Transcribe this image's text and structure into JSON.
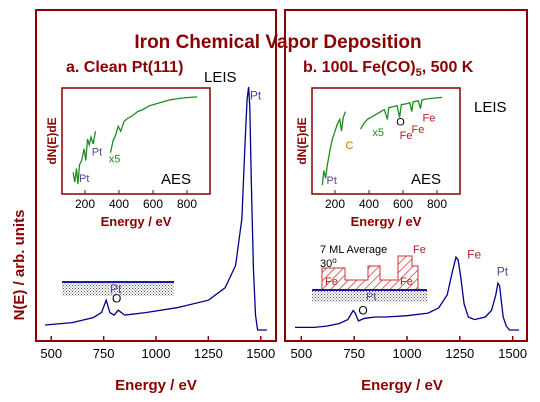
{
  "figure": {
    "title": "Iron Chemical Vapor Deposition",
    "ylabel": "N(E) / arb. units"
  },
  "colors": {
    "frame": "#8b0000",
    "leis_trace": "#00008b",
    "aes_trace": "#228b22",
    "label_pt": "#5a3fa0",
    "label_fe": "#b22222",
    "label_c": "#c87800",
    "label_o": "#000000",
    "model_hatch": "#c83232"
  },
  "chart_data": [
    {
      "type": "line",
      "panel": "a",
      "title": "a. Clean Pt(111)",
      "method_label": "LEIS",
      "xlabel": "Energy / eV",
      "ylabel": "N(E) / arb. units",
      "xlim": [
        470,
        1530
      ],
      "ylim": [
        0,
        1
      ],
      "xticks": [
        500,
        750,
        1000,
        1250,
        1500
      ],
      "grid": false,
      "series": [
        {
          "values": [
            [
              470,
              0.02
            ],
            [
              600,
              0.03
            ],
            [
              700,
              0.05
            ],
            [
              740,
              0.07
            ],
            [
              762,
              0.12
            ],
            [
              780,
              0.07
            ],
            [
              800,
              0.06
            ],
            [
              820,
              0.08
            ],
            [
              850,
              0.06
            ],
            [
              950,
              0.07
            ],
            [
              1100,
              0.09
            ],
            [
              1250,
              0.12
            ],
            [
              1330,
              0.17
            ],
            [
              1380,
              0.26
            ],
            [
              1410,
              0.45
            ],
            [
              1425,
              0.75
            ],
            [
              1435,
              0.93
            ],
            [
              1442,
              0.98
            ],
            [
              1448,
              0.9
            ],
            [
              1455,
              0.6
            ],
            [
              1465,
              0.25
            ],
            [
              1475,
              0.06
            ],
            [
              1485,
              0.0
            ],
            [
              1530,
              0.0
            ]
          ]
        }
      ],
      "peak_labels": [
        {
          "text": "Pt",
          "x": 1448,
          "y": 0.93
        },
        {
          "text": "O",
          "x": 790,
          "y": 0.11
        }
      ],
      "model_labels": [
        "Pt"
      ],
      "inset": {
        "method_label": "AES",
        "xlabel": "Energy / eV",
        "ylabel": "dN(E)dE",
        "xlim": [
          100,
          900
        ],
        "xticks": [
          200,
          400,
          600,
          800
        ],
        "segments": [
          [
            [
              130,
              0.18
            ],
            [
              140,
              0.08
            ],
            [
              150,
              0.22
            ],
            [
              158,
              0.06
            ],
            [
              168,
              0.26
            ],
            [
              180,
              0.3
            ],
            [
              195,
              0.42
            ],
            [
              205,
              0.3
            ],
            [
              215,
              0.52
            ],
            [
              225,
              0.46
            ],
            [
              235,
              0.54
            ],
            [
              248,
              0.47
            ],
            [
              262,
              0.6
            ]
          ],
          [
            [
              350,
              0.38
            ],
            [
              365,
              0.5
            ],
            [
              380,
              0.56
            ],
            [
              395,
              0.65
            ],
            [
              410,
              0.6
            ],
            [
              430,
              0.7
            ],
            [
              450,
              0.73
            ],
            [
              480,
              0.76
            ],
            [
              510,
              0.8
            ],
            [
              540,
              0.82
            ],
            [
              580,
              0.86
            ],
            [
              620,
              0.88
            ],
            [
              660,
              0.9
            ],
            [
              700,
              0.92
            ],
            [
              740,
              0.93
            ],
            [
              780,
              0.94
            ],
            [
              820,
              0.945
            ],
            [
              860,
              0.95
            ]
          ]
        ],
        "peak_labels": [
          {
            "text": "Pt",
            "x": 165,
            "y": 0.08
          },
          {
            "text": "Pt",
            "x": 240,
            "y": 0.35
          },
          {
            "text": "x5",
            "x": 340,
            "y": 0.28
          }
        ]
      }
    },
    {
      "type": "line",
      "panel": "b",
      "title": "b. 100L Fe(CO)",
      "title_sub": "5",
      "title_suffix": ", 500 K",
      "method_label": "LEIS",
      "xlabel": "Energy / eV",
      "xlim": [
        470,
        1530
      ],
      "ylim": [
        0,
        1
      ],
      "xticks": [
        500,
        750,
        1000,
        1250,
        1500
      ],
      "grid": false,
      "series": [
        {
          "values": [
            [
              470,
              0.02
            ],
            [
              560,
              0.02
            ],
            [
              620,
              0.03
            ],
            [
              680,
              0.05
            ],
            [
              720,
              0.08
            ],
            [
              745,
              0.15
            ],
            [
              755,
              0.13
            ],
            [
              770,
              0.07
            ],
            [
              800,
              0.09
            ],
            [
              850,
              0.1
            ],
            [
              900,
              0.1
            ],
            [
              1000,
              0.11
            ],
            [
              1100,
              0.13
            ],
            [
              1150,
              0.17
            ],
            [
              1190,
              0.27
            ],
            [
              1215,
              0.45
            ],
            [
              1232,
              0.56
            ],
            [
              1242,
              0.54
            ],
            [
              1255,
              0.4
            ],
            [
              1270,
              0.2
            ],
            [
              1290,
              0.1
            ],
            [
              1320,
              0.08
            ],
            [
              1370,
              0.1
            ],
            [
              1400,
              0.15
            ],
            [
              1420,
              0.27
            ],
            [
              1430,
              0.36
            ],
            [
              1438,
              0.34
            ],
            [
              1446,
              0.23
            ],
            [
              1455,
              0.1
            ],
            [
              1470,
              0.03
            ],
            [
              1485,
              0.0
            ],
            [
              1530,
              0.0
            ]
          ]
        }
      ],
      "peak_labels": [
        {
          "text": "Fe",
          "x": 1285,
          "y": 0.55
        },
        {
          "text": "Pt",
          "x": 1425,
          "y": 0.42
        },
        {
          "text": "O",
          "x": 770,
          "y": 0.12
        }
      ],
      "model_title": "7 ML Average",
      "model_angle": "30",
      "model_angle_unit": "o",
      "model_labels": [
        "Fe",
        "Pt",
        "Fe",
        "Fe"
      ],
      "inset": {
        "method_label": "AES",
        "xlabel": "Energy / eV",
        "ylabel": "dN(E)dE",
        "xlim": [
          100,
          900
        ],
        "xticks": [
          200,
          400,
          600,
          800
        ],
        "segments": [
          [
            [
              125,
              0.05
            ],
            [
              135,
              0.2
            ],
            [
              145,
              0.12
            ],
            [
              155,
              0.26
            ],
            [
              170,
              0.4
            ],
            [
              185,
              0.52
            ],
            [
              200,
              0.6
            ],
            [
              215,
              0.68
            ],
            [
              228,
              0.72
            ],
            [
              238,
              0.6
            ],
            [
              248,
              0.74
            ],
            [
              262,
              0.8
            ]
          ],
          [
            [
              350,
              0.62
            ],
            [
              370,
              0.68
            ],
            [
              390,
              0.72
            ],
            [
              410,
              0.74
            ],
            [
              430,
              0.76
            ],
            [
              450,
              0.78
            ],
            [
              470,
              0.8
            ],
            [
              490,
              0.82
            ],
            [
              508,
              0.72
            ],
            [
              516,
              0.84
            ],
            [
              540,
              0.85
            ],
            [
              565,
              0.86
            ],
            [
              580,
              0.74
            ],
            [
              590,
              0.87
            ],
            [
              620,
              0.88
            ],
            [
              640,
              0.89
            ],
            [
              652,
              0.8
            ],
            [
              660,
              0.9
            ],
            [
              690,
              0.91
            ],
            [
              703,
              0.83
            ],
            [
              712,
              0.92
            ],
            [
              740,
              0.93
            ],
            [
              770,
              0.935
            ],
            [
              800,
              0.94
            ],
            [
              830,
              0.945
            ]
          ]
        ],
        "peak_labels": [
          {
            "text": "Pt",
            "x": 150,
            "y": 0.06
          },
          {
            "text": "C",
            "x": 262,
            "y": 0.42
          },
          {
            "text": "O",
            "x": 560,
            "y": 0.66
          },
          {
            "text": "Fe",
            "x": 580,
            "y": 0.52
          },
          {
            "text": "Fe",
            "x": 650,
            "y": 0.58
          },
          {
            "text": "Fe",
            "x": 715,
            "y": 0.7
          },
          {
            "text": "x5",
            "x": 420,
            "y": 0.55
          }
        ]
      }
    }
  ]
}
